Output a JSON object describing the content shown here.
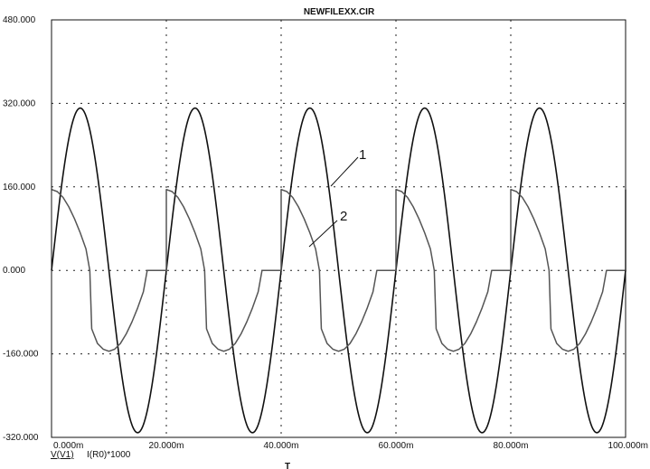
{
  "chart_data": {
    "type": "line",
    "title": "NEWFILEXX.CIR",
    "xlabel": "T",
    "ylabel": "",
    "xlim": [
      0,
      100
    ],
    "ylim": [
      -320,
      480
    ],
    "x_unit": "m",
    "grid": true,
    "x_ticks": [
      "0.000m",
      "20.000m",
      "40.000m",
      "60.000m",
      "80.000m",
      "100.000m"
    ],
    "y_ticks": [
      "480.000",
      "320.000",
      "160.000",
      "0.000",
      "-160.000",
      "-320.000"
    ],
    "legend": [
      "V(V1)",
      "I(R0)*1000"
    ],
    "annotations": [
      "1",
      "2"
    ],
    "series": [
      {
        "name": "V(V1)",
        "color": "#111111",
        "description": "sine wave, amplitude 311, period 20m",
        "amplitude": 311,
        "period_ms": 20
      },
      {
        "name": "I(R0)*1000",
        "color": "#555555",
        "x": [
          0,
          1,
          2,
          3,
          4,
          5,
          6,
          6.67,
          7,
          8,
          9,
          10,
          11,
          12,
          13,
          14,
          15,
          16,
          16.67,
          20,
          20,
          21,
          22,
          23,
          24,
          25,
          26,
          26.67,
          27,
          28,
          29,
          30,
          31,
          32,
          33,
          34,
          35,
          36,
          36.67,
          40,
          40,
          41,
          42,
          43,
          44,
          45,
          46,
          46.67,
          47,
          48,
          49,
          50,
          51,
          52,
          53,
          54,
          55,
          56,
          56.67,
          60,
          60,
          61,
          62,
          63,
          64,
          65,
          66,
          66.67,
          67,
          68,
          69,
          70,
          71,
          72,
          73,
          74,
          75,
          76,
          76.67,
          80,
          80,
          81,
          82,
          83,
          84,
          85,
          86,
          86.67,
          87,
          88,
          89,
          90,
          91,
          92,
          93,
          94,
          95,
          96,
          96.67,
          100,
          100
        ],
        "y": [
          155,
          151,
          140,
          122,
          99,
          72,
          41,
          0,
          -112,
          -140,
          -151,
          -155,
          -151,
          -140,
          -122,
          -99,
          -72,
          -41,
          0,
          0,
          155,
          151,
          140,
          122,
          99,
          72,
          41,
          0,
          -112,
          -140,
          -151,
          -155,
          -151,
          -140,
          -122,
          -99,
          -72,
          -41,
          0,
          0,
          155,
          151,
          140,
          122,
          99,
          72,
          41,
          0,
          -112,
          -140,
          -151,
          -155,
          -151,
          -140,
          -122,
          -99,
          -72,
          -41,
          0,
          0,
          155,
          151,
          140,
          122,
          99,
          72,
          41,
          0,
          -112,
          -140,
          -151,
          -155,
          -151,
          -140,
          -122,
          -99,
          -72,
          -41,
          0,
          0,
          155,
          151,
          140,
          122,
          99,
          72,
          41,
          0,
          -112,
          -140,
          -151,
          -155,
          -151,
          -140,
          -122,
          -99,
          -72,
          -41,
          0,
          0,
          155
        ]
      }
    ]
  }
}
